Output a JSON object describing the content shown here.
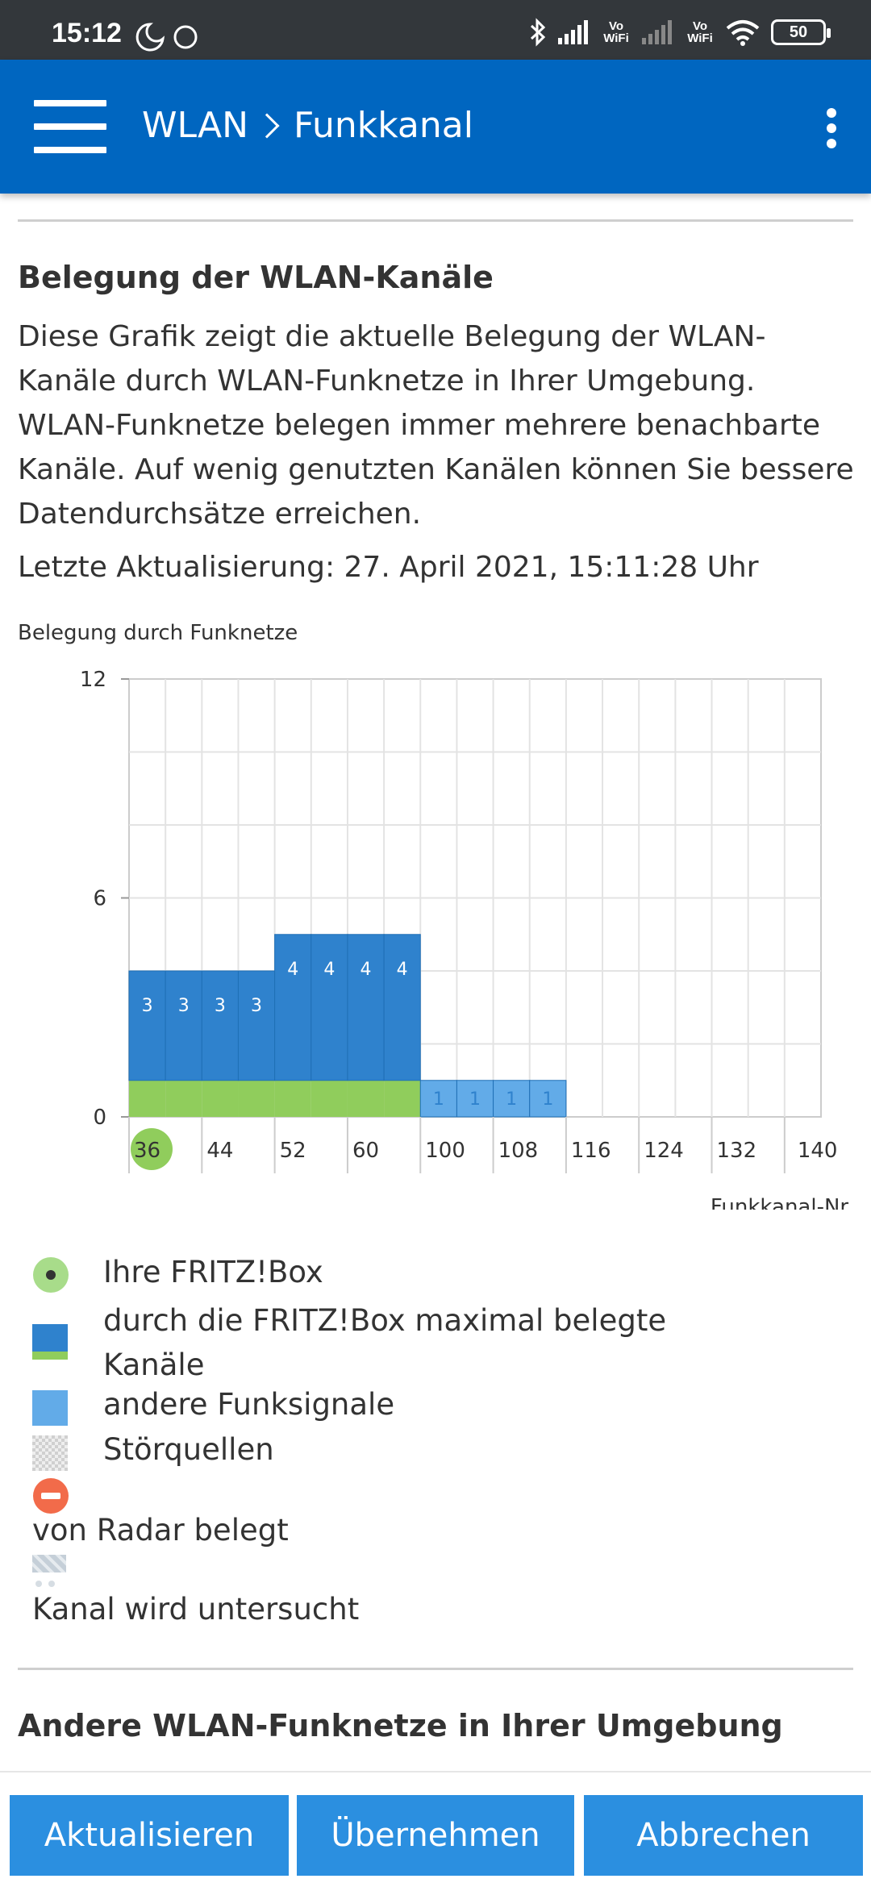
{
  "status_bar": {
    "time": "15:12",
    "vowifi_1": "Vo WiFi",
    "vowifi_2": "Vo WiFi",
    "battery": "50",
    "icons": [
      "moon-icon",
      "circle-icon",
      "bluetooth-icon",
      "signal-icon",
      "wifi-icon",
      "battery-icon"
    ]
  },
  "app_bar": {
    "crumb_parent": "WLAN",
    "crumb_current": "Funkkanal",
    "background": "#0066c0"
  },
  "section": {
    "title": "Belegung der WLAN-Kanäle",
    "description": "Diese Grafik zeigt die aktuelle Belegung der WLAN-Kanäle durch WLAN-Funknetze in Ihrer Umgebung. WLAN-Funknetze belegen immer mehrere benachbarte Kanäle. Auf wenig genutzten Kanälen können Sie bessere Datendurchsätze erreichen.",
    "last_update": "Letzte Aktualisierung: 27. April 2021, 15:11:28 Uhr"
  },
  "chart_data": {
    "type": "bar",
    "title": "Belegung durch Funknetze",
    "xlabel": "Funkkanal-Nr.",
    "ylabel": "",
    "ylim": [
      0,
      12
    ],
    "yticks": [
      0,
      6,
      12
    ],
    "grid": true,
    "x_tick_labels": [
      "36",
      "44",
      "52",
      "60",
      "100",
      "108",
      "116",
      "124",
      "132",
      "140"
    ],
    "own_channel": "36",
    "channels": [
      "36",
      "40",
      "44",
      "48",
      "52",
      "56",
      "60",
      "64",
      "100",
      "104",
      "108",
      "112",
      "116",
      "120",
      "124",
      "128",
      "132",
      "136",
      "140"
    ],
    "series": [
      {
        "name": "durch die FRITZ!Box maximal belegte Kanäle",
        "color": "#90cd5c",
        "values": [
          1,
          1,
          1,
          1,
          1,
          1,
          1,
          1,
          0,
          0,
          0,
          0,
          0,
          0,
          0,
          0,
          0,
          0,
          0
        ]
      },
      {
        "name": "andere Funksignale",
        "color": "#2f82cd",
        "values": [
          3,
          3,
          3,
          3,
          4,
          4,
          4,
          4,
          0,
          0,
          0,
          0,
          0,
          0,
          0,
          0,
          0,
          0,
          0
        ],
        "labels": [
          "3",
          "3",
          "3",
          "3",
          "4",
          "4",
          "4",
          "4",
          "",
          "",
          "",
          "",
          "",
          "",
          "",
          "",
          "",
          "",
          ""
        ]
      },
      {
        "name": "andere Funksignale",
        "color": "#62abe8",
        "values": [
          0,
          0,
          0,
          0,
          0,
          0,
          0,
          0,
          1,
          1,
          1,
          1,
          0,
          0,
          0,
          0,
          0,
          0,
          0
        ],
        "labels": [
          "",
          "",
          "",
          "",
          "",
          "",
          "",
          "",
          "1",
          "1",
          "1",
          "1",
          "",
          "",
          "",
          "",
          "",
          "",
          ""
        ]
      }
    ]
  },
  "legend": {
    "items": [
      {
        "label": "Ihre FRITZ!Box",
        "icon": "fritzbox-dot-icon"
      },
      {
        "label": "durch die FRITZ!Box maximal belegte Kanäle",
        "icon": "occupied-channels-icon"
      },
      {
        "label": "andere Funksignale",
        "icon": "other-signals-icon"
      },
      {
        "label": "Störquellen",
        "icon": "interference-icon"
      },
      {
        "label": "von Radar belegt",
        "icon": "radar-icon"
      },
      {
        "label": "Kanal wird untersucht",
        "icon": "scanning-icon"
      }
    ]
  },
  "other_networks": {
    "title": "Andere WLAN-Funknetze in Ihrer Umgebung"
  },
  "buttons": {
    "refresh": "Aktualisieren",
    "apply": "Übernehmen",
    "cancel": "Abbrechen",
    "color": "#2b8fe0"
  }
}
